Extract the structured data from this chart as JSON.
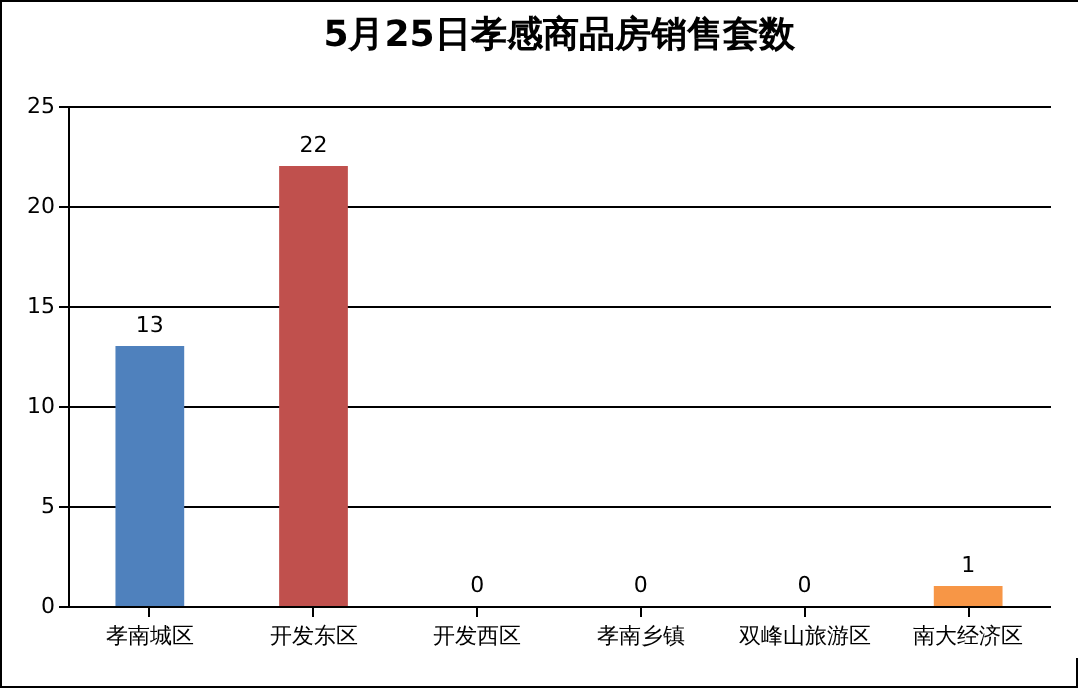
{
  "chart_data": {
    "type": "bar",
    "title": "5月25日孝感商品房销售套数",
    "categories": [
      "孝南城区",
      "开发东区",
      "开发西区",
      "孝南乡镇",
      "双峰山旅游区",
      "南大经济区"
    ],
    "values": [
      13,
      22,
      0,
      0,
      0,
      1
    ],
    "colors": [
      "#4f81bd",
      "#c0504d",
      "#9bbb59",
      "#8064a2",
      "#4bacc6",
      "#f79646"
    ],
    "ylim": [
      0,
      25
    ],
    "yticks": [
      0,
      5,
      10,
      15,
      20,
      25
    ],
    "grid": "y",
    "data_labels": true,
    "legend": false
  }
}
